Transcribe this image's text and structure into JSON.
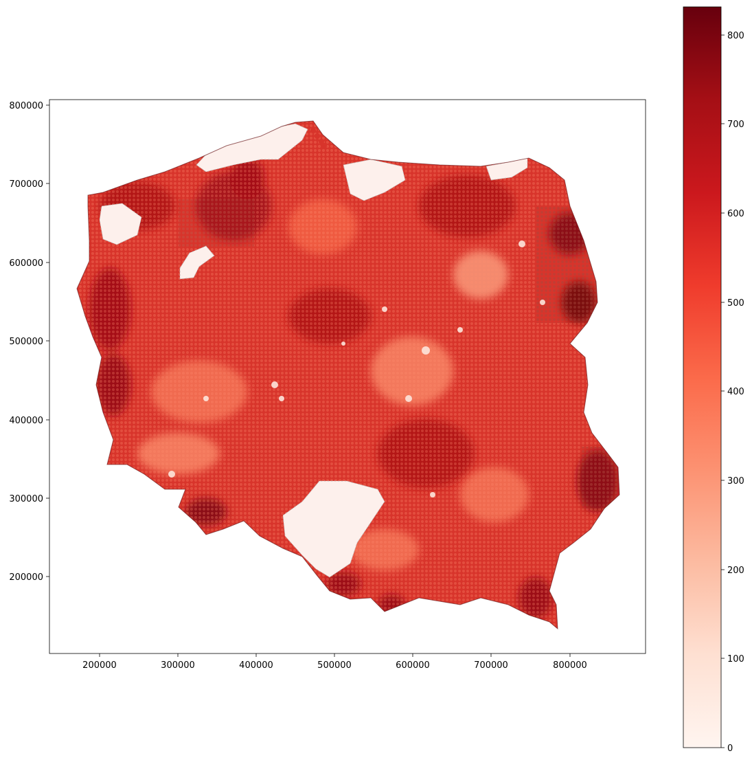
{
  "map": {
    "x_ticks": [
      "200000",
      "300000",
      "400000",
      "500000",
      "600000",
      "700000",
      "800000"
    ],
    "y_ticks": [
      "800000",
      "700000",
      "600000",
      "500000",
      "400000",
      "300000",
      "200000"
    ],
    "x_range": [
      137000,
      893000
    ],
    "y_range": [
      102000,
      808000
    ]
  },
  "colorbar": {
    "colormap": "Reds",
    "ticks": [
      "0",
      "100",
      "200",
      "300",
      "400",
      "500",
      "600",
      "700",
      "800"
    ],
    "range": [
      0,
      830
    ]
  },
  "colors": {
    "no_data_fill": "#fdf0ec",
    "no_data_edge": "#b8b0ae",
    "border": "#000000",
    "cmap_stops": [
      "#fff5f0",
      "#fee0d2",
      "#fcbba1",
      "#fc9272",
      "#fb6a4a",
      "#ef3b2c",
      "#cb181d",
      "#a50f15",
      "#67000d"
    ]
  }
}
